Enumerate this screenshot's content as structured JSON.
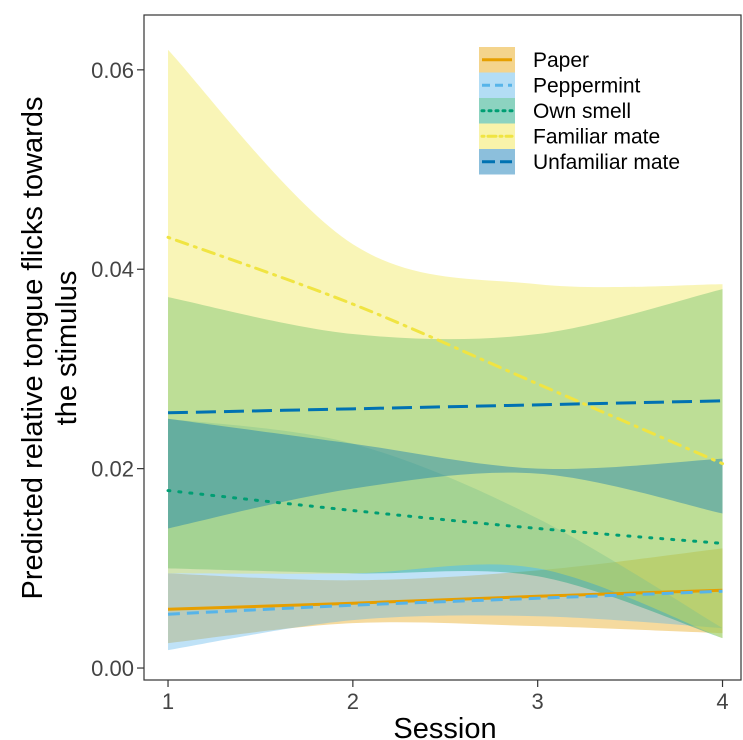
{
  "chart_data": {
    "type": "line",
    "title": "",
    "xlabel": "Session",
    "ylabel_lines": [
      "Predicted relative tongue flicks towards",
      "the stimulus"
    ],
    "xlim": [
      0.87,
      4.1
    ],
    "ylim": [
      -0.0012,
      0.0655
    ],
    "x_ticks": [
      1,
      2,
      3,
      4
    ],
    "x_tick_labels": [
      "1",
      "2",
      "3",
      "4"
    ],
    "y_ticks": [
      0.0,
      0.02,
      0.04,
      0.06
    ],
    "y_tick_labels": [
      "0.00",
      "0.02",
      "0.04",
      "0.06"
    ],
    "grid": false,
    "legend_position": "top-right",
    "x": [
      1,
      2,
      3,
      4
    ],
    "series": [
      {
        "name": "Paper",
        "line_color": "#E69F00",
        "fill_color": "#E69F00",
        "dash": "solid",
        "values": [
          0.0059,
          0.0065,
          0.0072,
          0.0078
        ],
        "lower": [
          0.0025,
          0.0045,
          0.0042,
          0.0035
        ],
        "upper": [
          0.0095,
          0.0088,
          0.0098,
          0.012
        ]
      },
      {
        "name": "Peppermint",
        "line_color": "#56B4E9",
        "fill_color": "#56B4E9",
        "dash": "dashed",
        "values": [
          0.0054,
          0.0063,
          0.007,
          0.0077
        ],
        "lower": [
          0.0018,
          0.0048,
          0.0052,
          0.004
        ],
        "upper": [
          0.025,
          0.0225,
          0.015,
          0.004
        ]
      },
      {
        "name": "Own smell",
        "line_color": "#009E73",
        "fill_color": "#009E73",
        "dash": "dotted",
        "values": [
          0.0178,
          0.0158,
          0.014,
          0.0125
        ],
        "lower": [
          0.01,
          0.0095,
          0.0092,
          0.003
        ],
        "upper": [
          0.0372,
          0.0335,
          0.0335,
          0.038
        ]
      },
      {
        "name": "Familiar mate",
        "line_color": "#F0E442",
        "fill_color": "#F0E442",
        "dash": "dotdash",
        "values": [
          0.0432,
          0.0365,
          0.0285,
          0.0205
        ],
        "lower": [
          0.0095,
          0.0095,
          0.01,
          0.003
        ],
        "upper": [
          0.062,
          0.0425,
          0.0385,
          0.0385
        ]
      },
      {
        "name": "Unfamiliar mate",
        "line_color": "#0072B2",
        "fill_color": "#0072B2",
        "dash": "longdash",
        "values": [
          0.0256,
          0.026,
          0.0264,
          0.0268
        ],
        "lower": [
          0.014,
          0.018,
          0.0195,
          0.0155
        ],
        "upper": [
          0.025,
          0.0225,
          0.02,
          0.021
        ]
      }
    ]
  }
}
